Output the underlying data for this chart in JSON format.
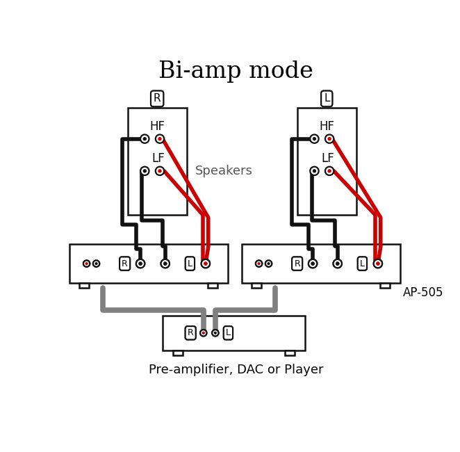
{
  "title": "Bi-amp mode",
  "subtitle": "Pre-amplifier, DAC or Player",
  "ap505_label": "AP-505",
  "speakers_label": "Speakers",
  "bg_color": "#ffffff",
  "text_color": "#000000",
  "wire_black": "#111111",
  "wire_red": "#cc0000",
  "wire_gray": "#808080",
  "box_edge": "#111111"
}
